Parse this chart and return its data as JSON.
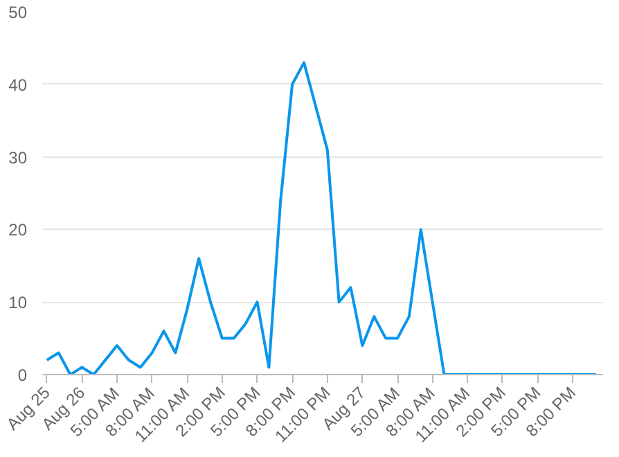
{
  "chart_data": {
    "type": "line",
    "categories": [
      "Aug 25",
      null,
      null,
      "Aug 26",
      null,
      null,
      "5:00 AM",
      null,
      null,
      "8:00 AM",
      null,
      null,
      "11:00 AM",
      null,
      null,
      "2:00 PM",
      null,
      null,
      "5:00 PM",
      null,
      null,
      "8:00 PM",
      null,
      null,
      "11:00 PM",
      null,
      null,
      "Aug 27",
      null,
      null,
      "5:00 AM",
      null,
      null,
      "8:00 AM",
      null,
      null,
      "11:00 AM",
      null,
      null,
      "2:00 PM",
      null,
      null,
      "5:00 PM",
      null,
      null,
      "8:00 PM",
      null,
      null
    ],
    "series": [
      {
        "color": "#0a96eb",
        "values": [
          2,
          3,
          0,
          1,
          0,
          2,
          4,
          2,
          1,
          3,
          6,
          3,
          9,
          16,
          10,
          5,
          5,
          7,
          10,
          1,
          24,
          40,
          43,
          37,
          31,
          10,
          12,
          4,
          8,
          5,
          5,
          8,
          20,
          10,
          0,
          0,
          0,
          0,
          0,
          0,
          0,
          0,
          0,
          0,
          0,
          0,
          0,
          0
        ]
      }
    ],
    "ylim": [
      0,
      50
    ],
    "yticks": [
      0,
      10,
      20,
      30,
      40,
      50
    ],
    "grid": "y",
    "marker": "none",
    "line_style": "solid"
  }
}
